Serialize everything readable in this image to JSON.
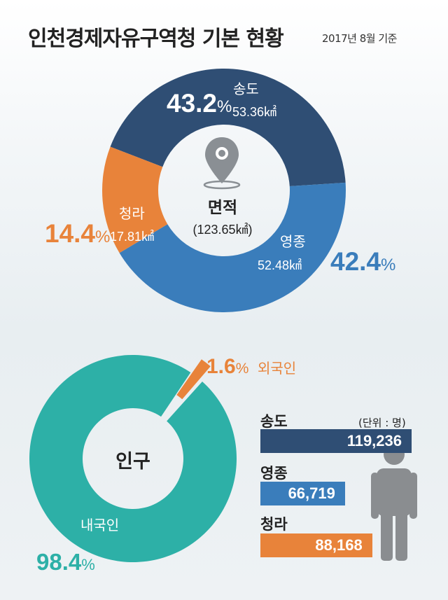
{
  "header": {
    "title": "인천경제자유구역청 기본 현황",
    "subtitle": "2017년 8월 기준"
  },
  "colors": {
    "songdo": "#2f4e74",
    "yeongjong": "#3a7dbb",
    "cheongna": "#e8833a",
    "domestic": "#2db0a7",
    "foreign": "#e8833a"
  },
  "area_chart": {
    "center_title": "면적",
    "center_total": "(123.65㎢)",
    "segments": [
      {
        "name": "송도",
        "area": "53.36㎢",
        "pct_num": "43.2",
        "pct_sign": "%"
      },
      {
        "name": "영종",
        "area": "52.48㎢",
        "pct_num": "42.4",
        "pct_sign": "%"
      },
      {
        "name": "청라",
        "area": "17.81㎢",
        "pct_num": "14.4",
        "pct_sign": "%"
      }
    ]
  },
  "population_chart": {
    "center_title": "인구",
    "segments": [
      {
        "name": "내국인",
        "pct_num": "98.4",
        "pct_sign": "%"
      },
      {
        "name": "외국인",
        "pct_num": "1.6",
        "pct_sign": "%"
      }
    ]
  },
  "population_bars": {
    "unit": "(단위 : 명)",
    "items": [
      {
        "name": "송도",
        "value_label": "119,236"
      },
      {
        "name": "영종",
        "value_label": "66,719"
      },
      {
        "name": "청라",
        "value_label": "88,168"
      }
    ]
  },
  "chart_data": [
    {
      "type": "pie",
      "title": "면적",
      "total": 123.65,
      "unit": "㎢",
      "categories": [
        "송도",
        "영종",
        "청라"
      ],
      "values": [
        53.36,
        52.48,
        17.81
      ],
      "percentages": [
        43.2,
        42.4,
        14.4
      ]
    },
    {
      "type": "pie",
      "title": "인구",
      "categories": [
        "내국인",
        "외국인"
      ],
      "percentages": [
        98.4,
        1.6
      ]
    },
    {
      "type": "bar",
      "categories": [
        "송도",
        "영종",
        "청라"
      ],
      "values": [
        119236,
        66719,
        88168
      ],
      "unit": "명"
    }
  ]
}
